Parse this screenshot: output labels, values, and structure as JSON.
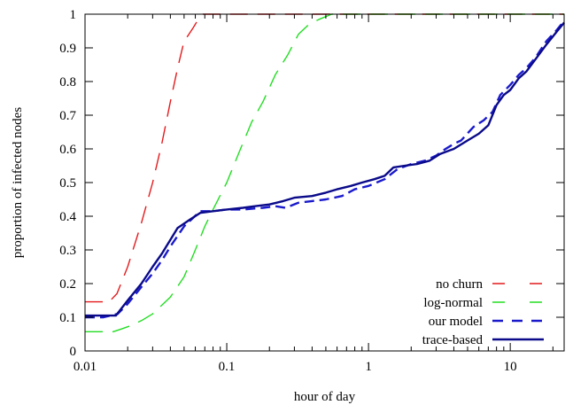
{
  "chart_data": {
    "type": "line",
    "xlabel": "hour of day",
    "ylabel": "proportion of infected nodes",
    "xscale": "log",
    "xlim": [
      0.01,
      24
    ],
    "ylim": [
      0,
      1
    ],
    "xticks": [
      {
        "value": 0.01,
        "label": "0.01"
      },
      {
        "value": 0.1,
        "label": "0.1"
      },
      {
        "value": 1,
        "label": "1"
      },
      {
        "value": 10,
        "label": "10"
      }
    ],
    "yticks": [
      {
        "value": 0,
        "label": "0"
      },
      {
        "value": 0.1,
        "label": "0.1"
      },
      {
        "value": 0.2,
        "label": "0.2"
      },
      {
        "value": 0.3,
        "label": "0.3"
      },
      {
        "value": 0.4,
        "label": "0.4"
      },
      {
        "value": 0.5,
        "label": "0.5"
      },
      {
        "value": 0.6,
        "label": "0.6"
      },
      {
        "value": 0.7,
        "label": "0.7"
      },
      {
        "value": 0.8,
        "label": "0.8"
      },
      {
        "value": 0.9,
        "label": "0.9"
      },
      {
        "value": 1,
        "label": "1"
      }
    ],
    "grid": false,
    "legend_position": "bottom-right",
    "series": [
      {
        "name": "no churn",
        "color": "#e41a1c",
        "dash": "long-dash",
        "points": [
          [
            0.01,
            0.146
          ],
          [
            0.0148,
            0.146
          ],
          [
            0.0168,
            0.17
          ],
          [
            0.02,
            0.25
          ],
          [
            0.025,
            0.38
          ],
          [
            0.03,
            0.5
          ],
          [
            0.035,
            0.62
          ],
          [
            0.04,
            0.74
          ],
          [
            0.045,
            0.84
          ],
          [
            0.05,
            0.92
          ],
          [
            0.053,
            0.935
          ],
          [
            0.058,
            0.96
          ],
          [
            0.062,
            0.98
          ],
          [
            0.068,
            1.0
          ],
          [
            24,
            1.0
          ]
        ]
      },
      {
        "name": "log-normal",
        "color": "#22dd22",
        "dash": "long-dash",
        "points": [
          [
            0.01,
            0.057
          ],
          [
            0.0158,
            0.057
          ],
          [
            0.018,
            0.065
          ],
          [
            0.021,
            0.075
          ],
          [
            0.025,
            0.09
          ],
          [
            0.03,
            0.11
          ],
          [
            0.04,
            0.16
          ],
          [
            0.05,
            0.22
          ],
          [
            0.06,
            0.3
          ],
          [
            0.07,
            0.37
          ],
          [
            0.08,
            0.42
          ],
          [
            0.1,
            0.5
          ],
          [
            0.125,
            0.6
          ],
          [
            0.15,
            0.68
          ],
          [
            0.18,
            0.74
          ],
          [
            0.22,
            0.82
          ],
          [
            0.27,
            0.88
          ],
          [
            0.32,
            0.94
          ],
          [
            0.38,
            0.97
          ],
          [
            0.45,
            0.985
          ],
          [
            0.55,
            1.0
          ],
          [
            24,
            1.0
          ]
        ]
      },
      {
        "name": "our model",
        "color": "#1a1acc",
        "dash": "dash",
        "points": [
          [
            0.01,
            0.1
          ],
          [
            0.0135,
            0.1
          ],
          [
            0.017,
            0.11
          ],
          [
            0.02,
            0.14
          ],
          [
            0.025,
            0.19
          ],
          [
            0.03,
            0.23
          ],
          [
            0.035,
            0.27
          ],
          [
            0.04,
            0.31
          ],
          [
            0.05,
            0.37
          ],
          [
            0.065,
            0.415
          ],
          [
            0.08,
            0.415
          ],
          [
            0.1,
            0.42
          ],
          [
            0.13,
            0.42
          ],
          [
            0.18,
            0.425
          ],
          [
            0.22,
            0.43
          ],
          [
            0.26,
            0.425
          ],
          [
            0.32,
            0.44
          ],
          [
            0.4,
            0.445
          ],
          [
            0.5,
            0.45
          ],
          [
            0.65,
            0.46
          ],
          [
            0.8,
            0.48
          ],
          [
            1.0,
            0.49
          ],
          [
            1.3,
            0.51
          ],
          [
            1.6,
            0.54
          ],
          [
            2.0,
            0.555
          ],
          [
            2.5,
            0.565
          ],
          [
            3.0,
            0.58
          ],
          [
            3.5,
            0.6
          ],
          [
            4.0,
            0.615
          ],
          [
            4.5,
            0.625
          ],
          [
            5.5,
            0.665
          ],
          [
            6.5,
            0.685
          ],
          [
            7.5,
            0.71
          ],
          [
            8.5,
            0.76
          ],
          [
            10.0,
            0.79
          ],
          [
            11.5,
            0.82
          ],
          [
            13,
            0.84
          ],
          [
            15,
            0.87
          ],
          [
            18,
            0.92
          ],
          [
            21,
            0.95
          ],
          [
            24,
            0.98
          ]
        ]
      },
      {
        "name": "trace-based",
        "color": "#0a0a8a",
        "dash": "solid",
        "points": [
          [
            0.01,
            0.105
          ],
          [
            0.0165,
            0.105
          ],
          [
            0.02,
            0.15
          ],
          [
            0.025,
            0.2
          ],
          [
            0.03,
            0.25
          ],
          [
            0.035,
            0.29
          ],
          [
            0.04,
            0.33
          ],
          [
            0.045,
            0.365
          ],
          [
            0.055,
            0.39
          ],
          [
            0.065,
            0.41
          ],
          [
            0.08,
            0.415
          ],
          [
            0.1,
            0.42
          ],
          [
            0.13,
            0.425
          ],
          [
            0.16,
            0.43
          ],
          [
            0.2,
            0.435
          ],
          [
            0.25,
            0.445
          ],
          [
            0.3,
            0.455
          ],
          [
            0.4,
            0.46
          ],
          [
            0.5,
            0.47
          ],
          [
            0.6,
            0.48
          ],
          [
            0.75,
            0.49
          ],
          [
            0.9,
            0.5
          ],
          [
            1.1,
            0.51
          ],
          [
            1.3,
            0.52
          ],
          [
            1.5,
            0.545
          ],
          [
            1.8,
            0.55
          ],
          [
            2.2,
            0.555
          ],
          [
            2.7,
            0.565
          ],
          [
            3.2,
            0.585
          ],
          [
            4.0,
            0.6
          ],
          [
            5.0,
            0.625
          ],
          [
            6.0,
            0.645
          ],
          [
            7.0,
            0.67
          ],
          [
            8.0,
            0.73
          ],
          [
            9.0,
            0.76
          ],
          [
            10.0,
            0.775
          ],
          [
            11.5,
            0.81
          ],
          [
            13,
            0.83
          ],
          [
            15,
            0.865
          ],
          [
            18,
            0.91
          ],
          [
            21,
            0.945
          ],
          [
            24,
            0.975
          ]
        ]
      }
    ]
  }
}
